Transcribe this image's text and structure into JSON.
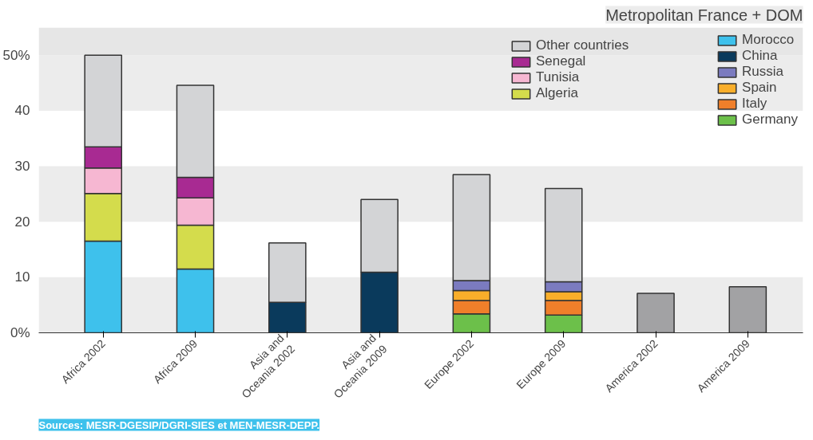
{
  "chart_data": {
    "type": "bar",
    "stacked": true,
    "title": "Metropolitan France + DOM",
    "categories": [
      "Africa 2002",
      "Africa 2009",
      "Asia and\nOceania 2002",
      "Asia and\nOceania 2009",
      "Europe 2002",
      "Europe 2009",
      "America 2002",
      "America 2009"
    ],
    "series": [
      {
        "name": "Germany",
        "color": "#6cc04a",
        "values": [
          null,
          null,
          null,
          null,
          3.4,
          3.2,
          null,
          null
        ]
      },
      {
        "name": "Italy",
        "color": "#f07f2a",
        "values": [
          null,
          null,
          null,
          null,
          2.4,
          2.6,
          null,
          null
        ]
      },
      {
        "name": "Spain",
        "color": "#f9ae2a",
        "values": [
          null,
          null,
          null,
          null,
          1.8,
          1.6,
          null,
          null
        ]
      },
      {
        "name": "Russia",
        "color": "#7b7bbf",
        "values": [
          null,
          null,
          null,
          null,
          1.8,
          1.8,
          null,
          null
        ]
      },
      {
        "name": "China",
        "color": "#0a3a5c",
        "values": [
          null,
          null,
          5.5,
          10.9,
          null,
          null,
          null,
          null
        ]
      },
      {
        "name": "Morocco",
        "color": "#3ec1ec",
        "values": [
          16.5,
          11.5,
          null,
          null,
          null,
          null,
          null,
          null
        ]
      },
      {
        "name": "Algeria",
        "color": "#d4dc4c",
        "values": [
          8.6,
          7.9,
          null,
          null,
          null,
          null,
          null,
          null
        ]
      },
      {
        "name": "Tunisia",
        "color": "#f6b7d2",
        "values": [
          4.6,
          4.9,
          null,
          null,
          null,
          null,
          null,
          null
        ]
      },
      {
        "name": "Senegal",
        "color": "#a82a92",
        "values": [
          3.8,
          3.7,
          null,
          null,
          null,
          null,
          null,
          null
        ]
      },
      {
        "name": "Other countries",
        "color": "#d3d4d6",
        "colors": [
          "#d3d4d6",
          "#d3d4d6",
          "#d3d4d6",
          "#d3d4d6",
          "#d3d4d6",
          "#d3d4d6",
          "#a2a2a4",
          "#a2a2a4"
        ],
        "values": [
          16.5,
          16.6,
          10.7,
          13.1,
          19.1,
          16.8,
          7.1,
          8.3
        ]
      }
    ],
    "ylim": [
      0,
      55
    ],
    "yticks": [
      {
        "value": 0,
        "label": "0%"
      },
      10,
      20,
      30,
      40,
      {
        "value": 50,
        "label": "50%"
      }
    ],
    "bands": [
      {
        "axis": "y",
        "from": 0,
        "to": 10,
        "color": "#ececec"
      },
      {
        "axis": "y",
        "from": 20,
        "to": 30,
        "color": "#ececec"
      },
      {
        "axis": "y",
        "from": 40,
        "to": 50,
        "color": "#ececec"
      },
      {
        "axis": "y",
        "from": 50,
        "to": 55,
        "color": "#e6e6e6"
      }
    ],
    "legend": "top right",
    "annotations": [
      "Sources: MESR-DGESIP/DGRI-SIES et MEN-MESR-DEPP."
    ]
  }
}
